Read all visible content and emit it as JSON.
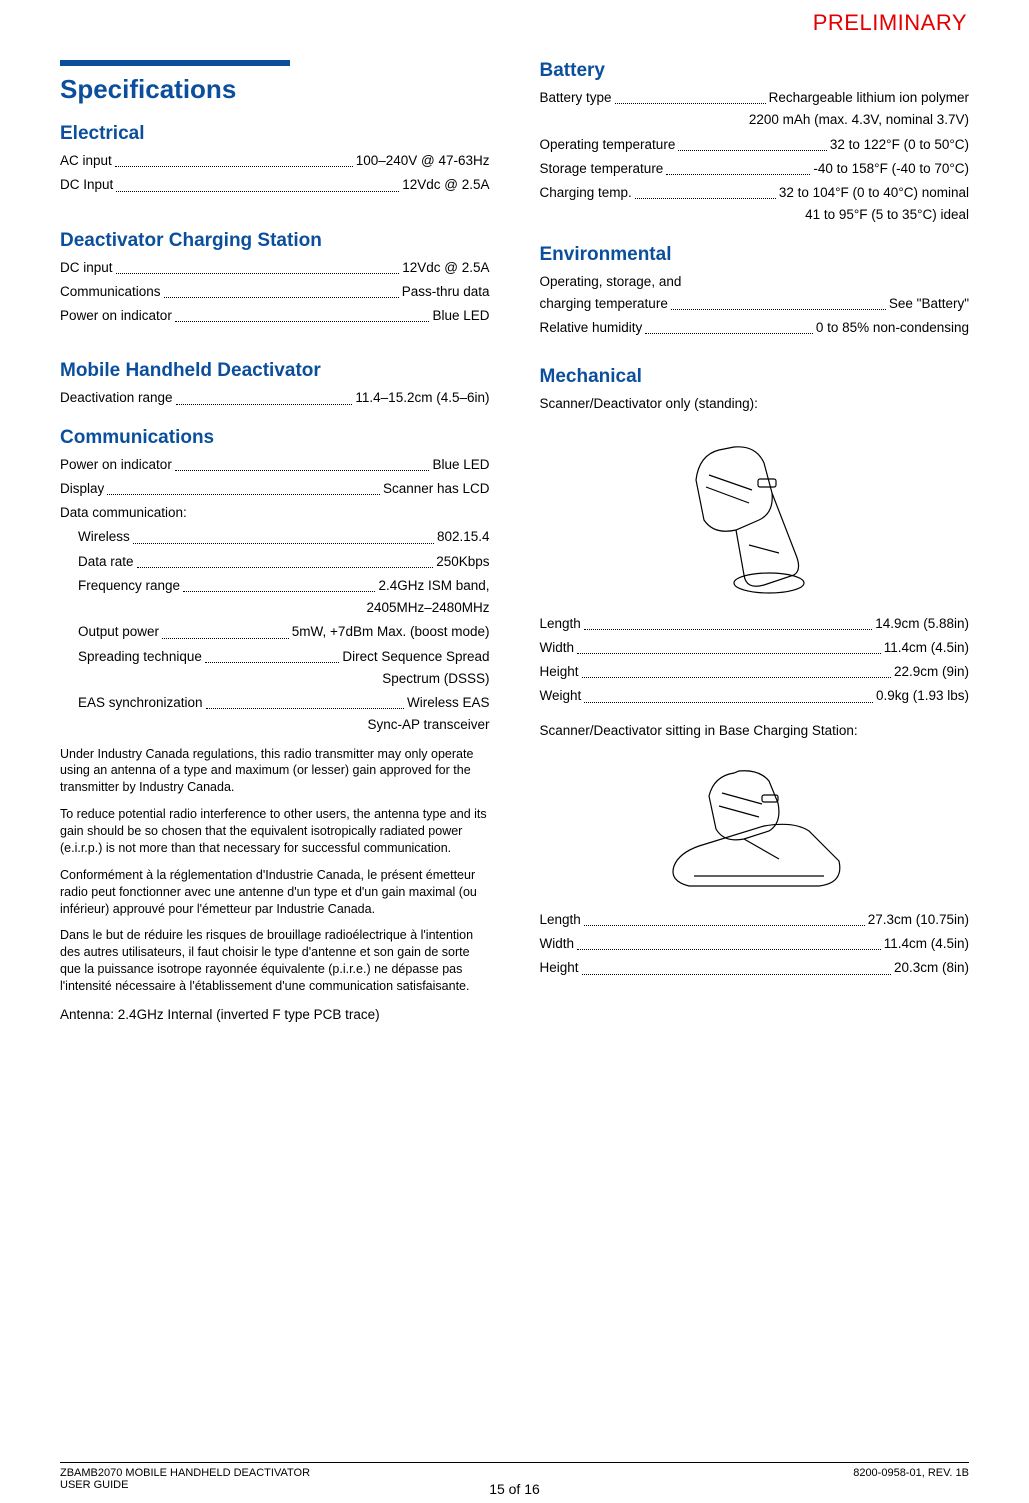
{
  "watermark": "PRELIMINARY",
  "title": "Specifications",
  "left": {
    "electrical": {
      "heading": "Electrical",
      "rows": [
        {
          "label": "AC input",
          "value": "100–240V @ 47-63Hz"
        },
        {
          "label": "DC Input",
          "value": "12Vdc @ 2.5A"
        }
      ]
    },
    "charging_station": {
      "heading": "Deactivator Charging Station",
      "rows": [
        {
          "label": "DC input",
          "value": "12Vdc @ 2.5A"
        },
        {
          "label": "Communications",
          "value": "Pass-thru data"
        },
        {
          "label": "Power on indicator",
          "value": "Blue LED"
        }
      ]
    },
    "deactivator": {
      "heading": "Mobile Handheld Deactivator",
      "rows": [
        {
          "label": "Deactivation range",
          "value": "11.4–15.2cm (4.5–6in)"
        }
      ]
    },
    "communications": {
      "heading": "Communications",
      "rows": [
        {
          "label": "Power on indicator",
          "value": "Blue LED"
        },
        {
          "label": "Display",
          "value": "Scanner has LCD"
        }
      ],
      "data_label": "Data communication:",
      "data_rows": [
        {
          "label": "Wireless",
          "value": "802.15.4"
        },
        {
          "label": "Data rate",
          "value": "250Kbps"
        },
        {
          "label": "Frequency range",
          "value": "2.4GHz ISM band,",
          "cont": "2405MHz–2480MHz"
        },
        {
          "label": "Output power",
          "value": "5mW, +7dBm Max. (boost mode)"
        },
        {
          "label": "Spreading technique",
          "value": "Direct Sequence Spread",
          "cont": "Spectrum (DSSS)"
        },
        {
          "label": "EAS synchronization",
          "value": "Wireless EAS",
          "cont": "Sync-AP transceiver"
        }
      ],
      "notes": [
        "Under Industry Canada regulations, this radio transmitter may only operate using an antenna of a type and maximum (or lesser) gain approved for the transmitter by Industry Canada.",
        "To reduce potential radio interference to other users, the antenna type and its gain should be so chosen that the equivalent isotropically radiated power (e.i.r.p.) is not more than that necessary for successful communication.",
        "Conformément à la réglementation d'Industrie Canada, le présent émetteur radio peut fonctionner avec une antenne d'un type et d'un gain maximal (ou inférieur) approuvé pour l'émetteur par Industrie Canada.",
        "Dans le but de réduire les risques de brouillage radioélectrique à l'intention des autres utilisateurs, il faut choisir le type d'antenne et son gain de sorte que la puissance isotrope rayonnée équivalente (p.i.r.e.) ne dépasse pas l'intensité nécessaire à l'établissement d'une communication satisfaisante."
      ],
      "antenna": "Antenna: 2.4GHz Internal (inverted F type PCB trace)"
    }
  },
  "right": {
    "battery": {
      "heading": "Battery",
      "rows": [
        {
          "label": "Battery type",
          "value": "Rechargeable lithium ion polymer",
          "cont": "2200 mAh (max. 4.3V, nominal 3.7V)"
        },
        {
          "label": "Operating temperature",
          "value": "32 to 122°F (0 to 50°C)"
        },
        {
          "label": "Storage temperature",
          "value": "-40 to 158°F (-40 to 70°C)"
        },
        {
          "label": "Charging temp.",
          "value": "32 to 104°F (0 to 40°C) nominal",
          "cont": "41 to 95°F (5 to 35°C) ideal"
        }
      ]
    },
    "environmental": {
      "heading": "Environmental",
      "env_label1": "Operating, storage, and",
      "rows": [
        {
          "label": "charging temperature",
          "value": "See \"Battery\""
        },
        {
          "label": "Relative humidity",
          "value": "0 to 85% non-condensing"
        }
      ]
    },
    "mechanical": {
      "heading": "Mechanical",
      "caption1": "Scanner/Deactivator only (standing):",
      "dims1": [
        {
          "label": "Length",
          "value": "14.9cm (5.88in)"
        },
        {
          "label": "Width",
          "value": "11.4cm (4.5in)"
        },
        {
          "label": "Height",
          "value": "22.9cm (9in)"
        },
        {
          "label": "Weight",
          "value": "0.9kg (1.93 lbs)"
        }
      ],
      "caption2": "Scanner/Deactivator sitting in Base Charging Station:",
      "dims2": [
        {
          "label": "Length",
          "value": "27.3cm (10.75in)"
        },
        {
          "label": "Width",
          "value": "11.4cm (4.5in)"
        },
        {
          "label": "Height",
          "value": "20.3cm (8in)"
        }
      ]
    }
  },
  "footer": {
    "left1": "ZBAMB2070 MOBILE HANDHELD DEACTIVATOR",
    "left2": "USER GUIDE",
    "right": "8200-0958-01, REV. 1B",
    "page": "15 of 16"
  }
}
